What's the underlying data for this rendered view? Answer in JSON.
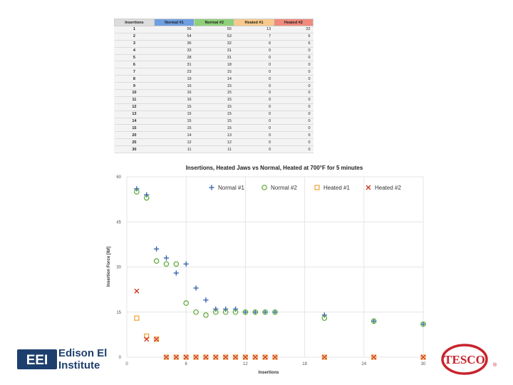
{
  "table": {
    "headers": [
      "Insertions",
      "Normal #1",
      "Normal #2",
      "Heated #1",
      "Heated #2"
    ],
    "header_colors": [
      "#dcdcdc",
      "#6f9fe2",
      "#8fd07a",
      "#f7c98a",
      "#f08a7c"
    ],
    "rows": [
      [
        "1",
        "56",
        "55",
        "13",
        "22"
      ],
      [
        "2",
        "54",
        "53",
        "7",
        "6"
      ],
      [
        "3",
        "36",
        "32",
        "6",
        "6"
      ],
      [
        "4",
        "33",
        "31",
        "0",
        "0"
      ],
      [
        "5",
        "28",
        "31",
        "0",
        "0"
      ],
      [
        "6",
        "31",
        "18",
        "0",
        "0"
      ],
      [
        "7",
        "23",
        "15",
        "0",
        "0"
      ],
      [
        "8",
        "19",
        "14",
        "0",
        "0"
      ],
      [
        "9",
        "16",
        "15",
        "0",
        "0"
      ],
      [
        "10",
        "16",
        "15",
        "0",
        "0"
      ],
      [
        "11",
        "16",
        "15",
        "0",
        "0"
      ],
      [
        "12",
        "15",
        "15",
        "0",
        "0"
      ],
      [
        "13",
        "15",
        "15",
        "0",
        "0"
      ],
      [
        "14",
        "15",
        "15",
        "0",
        "0"
      ],
      [
        "15",
        "15",
        "15",
        "0",
        "0"
      ],
      [
        "20",
        "14",
        "13",
        "0",
        "0"
      ],
      [
        "25",
        "12",
        "12",
        "0",
        "0"
      ],
      [
        "30",
        "11",
        "11",
        "0",
        "0"
      ]
    ]
  },
  "chart_data": {
    "type": "scatter",
    "title": "Insertions, Heated Jaws vs Normal, Heated at 700°F for 5 minutes",
    "xlabel": "Insertions",
    "ylabel": "Insertion Force [lbf]",
    "xlim": [
      0,
      30
    ],
    "ylim": [
      0,
      60
    ],
    "xticks": [
      0,
      6,
      12,
      18,
      24,
      30
    ],
    "yticks": [
      0,
      15,
      30,
      45,
      60
    ],
    "xtick_labels": [
      "0",
      "6",
      "12",
      "18",
      "24",
      "30"
    ],
    "ytick_labels": [
      "0",
      "15",
      "30",
      "45",
      "60"
    ],
    "legend_position": "top-right",
    "x": [
      1,
      2,
      3,
      4,
      5,
      6,
      7,
      8,
      9,
      10,
      11,
      12,
      13,
      14,
      15,
      20,
      25,
      30
    ],
    "series": [
      {
        "name": "Normal #1",
        "marker": "plus",
        "color": "#3a66b0",
        "values": [
          56,
          54,
          36,
          33,
          28,
          31,
          23,
          19,
          16,
          16,
          16,
          15,
          15,
          15,
          15,
          14,
          12,
          11
        ]
      },
      {
        "name": "Normal #2",
        "marker": "circle",
        "color": "#5aa832",
        "values": [
          55,
          53,
          32,
          31,
          31,
          18,
          15,
          14,
          15,
          15,
          15,
          15,
          15,
          15,
          15,
          13,
          12,
          11
        ]
      },
      {
        "name": "Heated #1",
        "marker": "square",
        "color": "#f0a030",
        "values": [
          13,
          7,
          6,
          0,
          0,
          0,
          0,
          0,
          0,
          0,
          0,
          0,
          0,
          0,
          0,
          0,
          0,
          0
        ]
      },
      {
        "name": "Heated #2",
        "marker": "x",
        "color": "#d03a26",
        "values": [
          22,
          6,
          6,
          0,
          0,
          0,
          0,
          0,
          0,
          0,
          0,
          0,
          0,
          0,
          0,
          0,
          0,
          0
        ]
      }
    ]
  },
  "logos": {
    "eei_line1": "Edison El",
    "eei_line2": "Institute",
    "eei_mark": "EEI",
    "tesco": "TESCO",
    "tesco_registered": "®",
    "eei_color": "#1d3f6e",
    "tesco_color": "#c8242c"
  }
}
